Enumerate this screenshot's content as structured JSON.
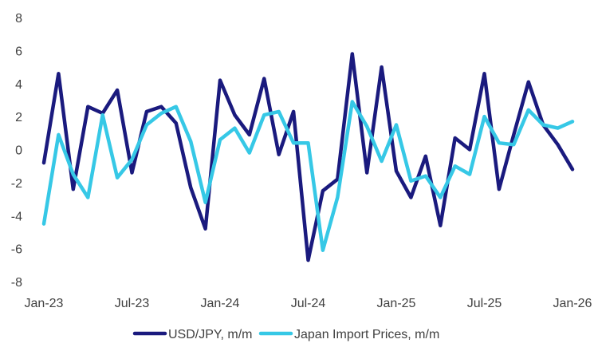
{
  "chart_data": {
    "type": "line",
    "title": "",
    "xlabel": "",
    "ylabel": "",
    "ylim": [
      -8,
      8
    ],
    "yticks": [
      "8",
      "6",
      "4",
      "2",
      "0",
      "-2",
      "-4",
      "-6",
      "-8"
    ],
    "ytick_values": [
      8,
      6,
      4,
      2,
      0,
      -2,
      -4,
      -6,
      -8
    ],
    "xtick_labels": [
      "Jan-23",
      "Jul-23",
      "Jan-24",
      "Jul-24",
      "Jan-25",
      "Jul-25",
      "Jan-26"
    ],
    "xtick_index": [
      0,
      6,
      12,
      18,
      24,
      30,
      36
    ],
    "x": [
      "Jan-23",
      "Feb-23",
      "Mar-23",
      "Apr-23",
      "May-23",
      "Jun-23",
      "Jul-23",
      "Aug-23",
      "Sep-23",
      "Oct-23",
      "Nov-23",
      "Dec-23",
      "Jan-24",
      "Feb-24",
      "Mar-24",
      "Apr-24",
      "May-24",
      "Jun-24",
      "Jul-24",
      "Aug-24",
      "Sep-24",
      "Oct-24",
      "Nov-24",
      "Dec-24",
      "Jan-25",
      "Feb-25",
      "Mar-25",
      "Apr-25",
      "May-25",
      "Jun-25",
      "Jul-25",
      "Aug-25",
      "Sep-25",
      "Oct-25",
      "Nov-25",
      "Dec-25",
      "Jan-26"
    ],
    "legend_position": "bottom",
    "series": [
      {
        "name": "USD/JPY, m/m",
        "color": "#1a1a7e",
        "values": [
          -0.8,
          4.6,
          -2.4,
          2.6,
          2.2,
          3.6,
          -1.4,
          2.3,
          2.6,
          1.6,
          -2.3,
          -4.8,
          4.2,
          2.1,
          0.9,
          4.3,
          -0.3,
          2.3,
          -6.7,
          -2.5,
          -1.8,
          5.8,
          -1.4,
          5.0,
          -1.3,
          -2.9,
          -0.4,
          -4.6,
          0.7,
          0.0,
          4.6,
          -2.4,
          0.9,
          4.1,
          1.5,
          0.3,
          -1.2
        ]
      },
      {
        "name": "Japan Import Prices, m/m",
        "color": "#36c8e6",
        "values": [
          -4.5,
          0.9,
          -1.5,
          -2.9,
          2.1,
          -1.7,
          -0.6,
          1.5,
          2.2,
          2.6,
          0.5,
          -3.2,
          0.6,
          1.3,
          -0.2,
          2.1,
          2.3,
          0.4,
          0.4,
          -6.1,
          -2.9,
          2.9,
          1.4,
          -0.7,
          1.5,
          -1.9,
          -1.6,
          -2.9,
          -1.0,
          -1.5,
          2.0,
          0.4,
          0.3,
          2.4,
          1.5,
          1.3,
          1.7
        ]
      }
    ]
  }
}
